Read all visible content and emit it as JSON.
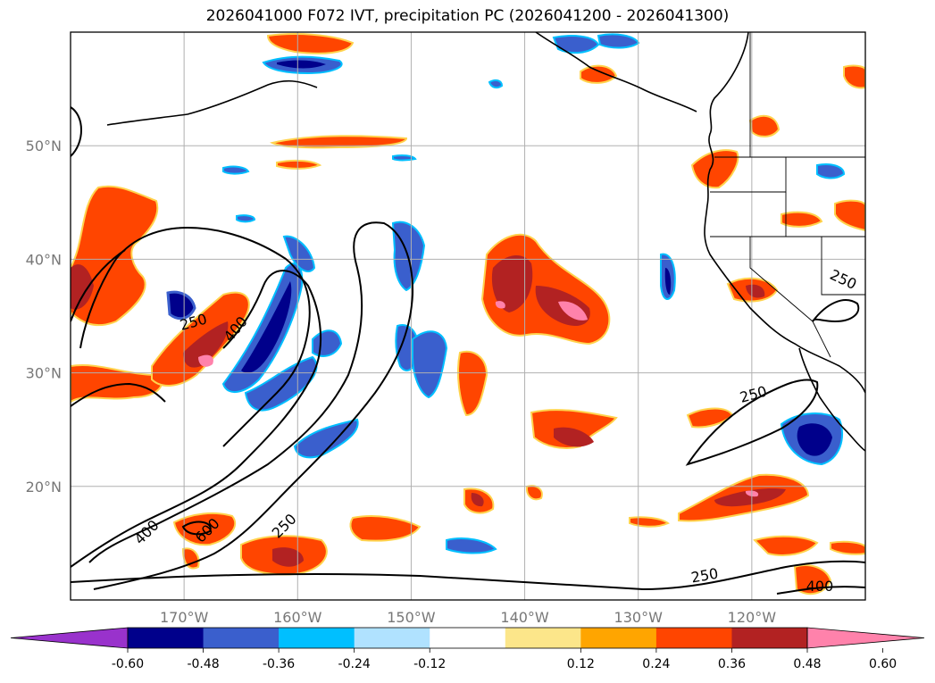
{
  "title": "2026041000 F072 IVT, precipitation PC (2026041200 - 2026041300)",
  "lat_labels": [
    {
      "value": 50,
      "text": "50°N"
    },
    {
      "value": 40,
      "text": "40°N"
    },
    {
      "value": 30,
      "text": "30°N"
    },
    {
      "value": 20,
      "text": "20°N"
    }
  ],
  "lon_labels": [
    {
      "value": -170,
      "text": "170°W"
    },
    {
      "value": -160,
      "text": "160°W"
    },
    {
      "value": -150,
      "text": "150°W"
    },
    {
      "value": -140,
      "text": "140°W"
    },
    {
      "value": -130,
      "text": "130°W"
    },
    {
      "value": -120,
      "text": "120°W"
    }
  ],
  "map_extent": {
    "lon_min": -180,
    "lon_max": -110,
    "lat_min": 10,
    "lat_max": 60
  },
  "grid": true,
  "ivt_contour_labels": [
    "250",
    "400",
    "600",
    "250",
    "400",
    "250",
    "250",
    "400",
    "250"
  ],
  "colorbar": {
    "extend": "both",
    "tick_labels": [
      "-0.60",
      "-0.48",
      "-0.36",
      "-0.24",
      "-0.12",
      "0.12",
      "0.24",
      "0.36",
      "0.48",
      "0.60"
    ],
    "colors": [
      "#9932cc",
      "#00008b",
      "#3a5fcd",
      "#00bfff",
      "#b0e2ff",
      "#ffffff",
      "#fce68a",
      "#ffa500",
      "#ff4500",
      "#b22222",
      "#ff82ab"
    ]
  }
}
